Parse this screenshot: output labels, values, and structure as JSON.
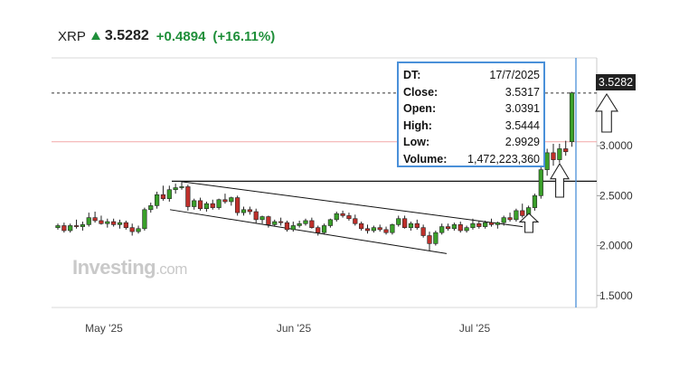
{
  "header": {
    "symbol": "XRP",
    "price": "3.5282",
    "change": "+0.4894",
    "change_pct": "(+16.11%)",
    "direction_icon": "up-arrow-icon",
    "up_color": "#1f8f3a"
  },
  "tooltip": {
    "rows": [
      {
        "key": "DT:",
        "value": "17/7/2025"
      },
      {
        "key": "Close:",
        "value": "3.5317"
      },
      {
        "key": "Open:",
        "value": "3.0391"
      },
      {
        "key": "High:",
        "value": "3.5444"
      },
      {
        "key": "Low:",
        "value": "2.9929"
      },
      {
        "key": "Volume:",
        "value": "1,472,223,360"
      }
    ]
  },
  "price_badge": "3.5282",
  "watermark": {
    "main": "Investing",
    "suffix": ".com"
  },
  "chart_data": {
    "type": "candlestick",
    "y_axis": {
      "ticks": [
        "3.0000",
        "2.5000",
        "2.0000",
        "1.5000"
      ],
      "tick_values": [
        3.0,
        2.5,
        2.0,
        1.5
      ],
      "range": [
        1.38,
        3.88
      ],
      "position": "right"
    },
    "x_axis": {
      "labels": [
        "May '25",
        "Jun '25",
        "Jul '25"
      ]
    },
    "candles": [
      [
        2.18,
        2.22,
        2.16,
        2.2
      ],
      [
        2.2,
        2.23,
        2.13,
        2.15
      ],
      [
        2.15,
        2.22,
        2.13,
        2.2
      ],
      [
        2.2,
        2.26,
        2.17,
        2.19
      ],
      [
        2.19,
        2.24,
        2.15,
        2.21
      ],
      [
        2.21,
        2.33,
        2.19,
        2.28
      ],
      [
        2.28,
        2.34,
        2.23,
        2.25
      ],
      [
        2.25,
        2.3,
        2.21,
        2.22
      ],
      [
        2.22,
        2.27,
        2.18,
        2.24
      ],
      [
        2.24,
        2.27,
        2.19,
        2.21
      ],
      [
        2.21,
        2.26,
        2.17,
        2.23
      ],
      [
        2.23,
        2.25,
        2.16,
        2.18
      ],
      [
        2.18,
        2.22,
        2.1,
        2.14
      ],
      [
        2.14,
        2.2,
        2.12,
        2.17
      ],
      [
        2.17,
        2.38,
        2.15,
        2.36
      ],
      [
        2.36,
        2.43,
        2.33,
        2.4
      ],
      [
        2.4,
        2.54,
        2.37,
        2.51
      ],
      [
        2.51,
        2.6,
        2.45,
        2.47
      ],
      [
        2.47,
        2.6,
        2.44,
        2.56
      ],
      [
        2.56,
        2.62,
        2.52,
        2.58
      ],
      [
        2.58,
        2.64,
        2.56,
        2.59
      ],
      [
        2.59,
        2.61,
        2.35,
        2.39
      ],
      [
        2.39,
        2.47,
        2.36,
        2.45
      ],
      [
        2.45,
        2.48,
        2.35,
        2.37
      ],
      [
        2.37,
        2.44,
        2.34,
        2.42
      ],
      [
        2.42,
        2.46,
        2.36,
        2.38
      ],
      [
        2.38,
        2.47,
        2.36,
        2.46
      ],
      [
        2.46,
        2.52,
        2.42,
        2.44
      ],
      [
        2.44,
        2.49,
        2.4,
        2.48
      ],
      [
        2.48,
        2.5,
        2.3,
        2.33
      ],
      [
        2.33,
        2.39,
        2.3,
        2.36
      ],
      [
        2.36,
        2.39,
        2.31,
        2.34
      ],
      [
        2.34,
        2.37,
        2.22,
        2.26
      ],
      [
        2.26,
        2.3,
        2.22,
        2.29
      ],
      [
        2.29,
        2.3,
        2.18,
        2.21
      ],
      [
        2.21,
        2.26,
        2.19,
        2.24
      ],
      [
        2.24,
        2.28,
        2.2,
        2.23
      ],
      [
        2.23,
        2.25,
        2.14,
        2.16
      ],
      [
        2.16,
        2.24,
        2.14,
        2.2
      ],
      [
        2.2,
        2.25,
        2.18,
        2.22
      ],
      [
        2.22,
        2.27,
        2.2,
        2.25
      ],
      [
        2.25,
        2.28,
        2.17,
        2.18
      ],
      [
        2.18,
        2.2,
        2.1,
        2.13
      ],
      [
        2.13,
        2.22,
        2.11,
        2.2
      ],
      [
        2.2,
        2.27,
        2.18,
        2.26
      ],
      [
        2.26,
        2.34,
        2.24,
        2.32
      ],
      [
        2.32,
        2.35,
        2.28,
        2.3
      ],
      [
        2.3,
        2.33,
        2.25,
        2.27
      ],
      [
        2.27,
        2.31,
        2.2,
        2.22
      ],
      [
        2.22,
        2.24,
        2.15,
        2.17
      ],
      [
        2.17,
        2.21,
        2.12,
        2.15
      ],
      [
        2.15,
        2.2,
        2.13,
        2.18
      ],
      [
        2.18,
        2.21,
        2.14,
        2.16
      ],
      [
        2.16,
        2.19,
        2.11,
        2.13
      ],
      [
        2.13,
        2.22,
        2.11,
        2.21
      ],
      [
        2.21,
        2.3,
        2.19,
        2.27
      ],
      [
        2.27,
        2.3,
        2.17,
        2.18
      ],
      [
        2.18,
        2.24,
        2.15,
        2.22
      ],
      [
        2.22,
        2.26,
        2.16,
        2.18
      ],
      [
        2.18,
        2.21,
        2.08,
        2.1
      ],
      [
        2.1,
        2.14,
        1.95,
        2.02
      ],
      [
        2.02,
        2.15,
        2.0,
        2.13
      ],
      [
        2.13,
        2.22,
        2.11,
        2.19
      ],
      [
        2.19,
        2.22,
        2.15,
        2.17
      ],
      [
        2.17,
        2.23,
        2.15,
        2.21
      ],
      [
        2.21,
        2.24,
        2.13,
        2.15
      ],
      [
        2.15,
        2.2,
        2.13,
        2.18
      ],
      [
        2.18,
        2.27,
        2.16,
        2.22
      ],
      [
        2.22,
        2.25,
        2.17,
        2.19
      ],
      [
        2.19,
        2.25,
        2.17,
        2.23
      ],
      [
        2.23,
        2.27,
        2.19,
        2.21
      ],
      [
        2.21,
        2.24,
        2.17,
        2.23
      ],
      [
        2.23,
        2.3,
        2.2,
        2.28
      ],
      [
        2.28,
        2.33,
        2.24,
        2.26
      ],
      [
        2.26,
        2.37,
        2.24,
        2.35
      ],
      [
        2.35,
        2.42,
        2.28,
        2.3
      ],
      [
        2.3,
        2.4,
        2.28,
        2.38
      ],
      [
        2.38,
        2.52,
        2.35,
        2.5
      ],
      [
        2.5,
        2.8,
        2.47,
        2.76
      ],
      [
        2.76,
        2.97,
        2.7,
        2.93
      ],
      [
        2.93,
        3.02,
        2.8,
        2.86
      ],
      [
        2.86,
        3.02,
        2.83,
        2.97
      ],
      [
        2.97,
        3.05,
        2.9,
        2.94
      ],
      [
        3.04,
        3.54,
        2.99,
        3.53
      ]
    ],
    "annotations": {
      "horizontal_level": 2.645,
      "last_price_level": 3.5282,
      "red_level": 3.04,
      "channel_upper": [
        [
          2.645,
          2.19
        ]
      ],
      "arrows": 3
    }
  }
}
